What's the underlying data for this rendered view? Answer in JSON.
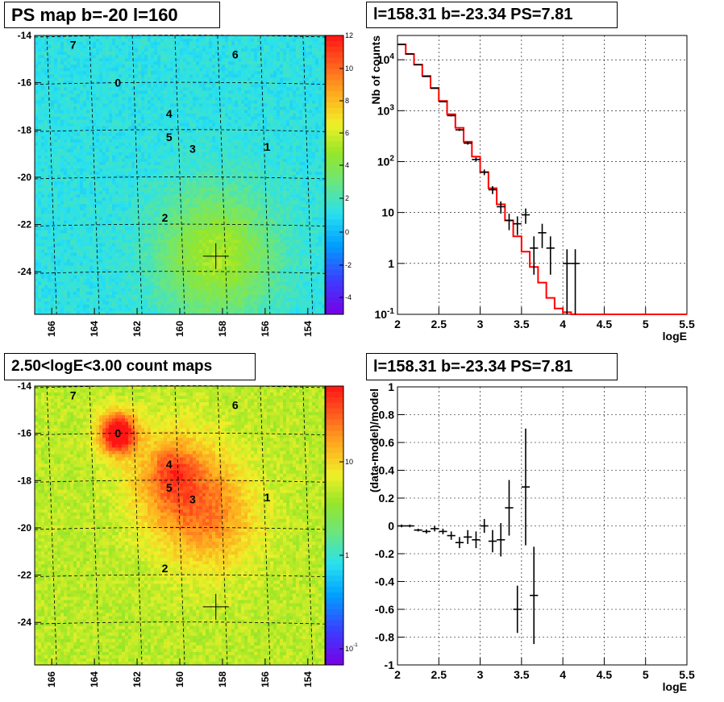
{
  "panels": {
    "tl_title": "PS map b=-20 l=160",
    "tr_title": "l=158.31 b=-23.34 PS=7.81",
    "bl_title": "2.50<logE<3.00 count maps",
    "br_title": "l=158.31 b=-23.34 PS=7.81"
  },
  "colors": {
    "fit_line": "#ff0000",
    "data_points": "#000000",
    "grid": "#000000"
  },
  "chart_data": [
    {
      "type": "heatmap",
      "title": "PS map b=-20 l=160",
      "xlabel": "",
      "ylabel": "",
      "xlim": [
        166.8,
        153.2
      ],
      "ylim": [
        -25.8,
        -14
      ],
      "x_ticks": [
        "166",
        "164",
        "162",
        "160",
        "158",
        "156",
        "154"
      ],
      "y_ticks": [
        "-14",
        "-16",
        "-18",
        "-20",
        "-22",
        "-24"
      ],
      "zlim": [
        -5,
        12
      ],
      "z_ticks": [
        "12",
        "10",
        "8",
        "6",
        "4",
        "2",
        "0",
        "-2",
        "-4"
      ],
      "background_level": 1,
      "hotspots": [
        {
          "l": 158.3,
          "b": -23.3,
          "sigma": 1.9,
          "amp": 4.2
        }
      ],
      "source_labels": [
        {
          "label": "7",
          "l": 165.0,
          "b": -14.4
        },
        {
          "label": "6",
          "l": 157.4,
          "b": -14.8
        },
        {
          "label": "0",
          "l": 162.9,
          "b": -16.0
        },
        {
          "label": "4",
          "l": 160.5,
          "b": -17.3
        },
        {
          "label": "5",
          "l": 160.5,
          "b": -18.3
        },
        {
          "label": "3",
          "l": 159.4,
          "b": -18.8
        },
        {
          "label": "1",
          "l": 155.9,
          "b": -18.7
        },
        {
          "label": "2",
          "l": 160.7,
          "b": -21.7
        }
      ],
      "marker": {
        "l": 158.31,
        "b": -23.34
      }
    },
    {
      "type": "line",
      "title": "l=158.31 b=-23.34 PS=7.81",
      "xlabel": "logE",
      "ylabel": "Nb of counts",
      "y_scale": "log",
      "xlim": [
        2,
        5.5
      ],
      "ylim": [
        0.1,
        30000
      ],
      "x_ticks": [
        "2",
        "2.5",
        "3",
        "3.5",
        "4",
        "4.5",
        "5",
        "5.5"
      ],
      "y_ticks": [
        "10^4",
        "10^3",
        "10^2",
        "10",
        "1",
        "10^-1"
      ],
      "fit_model": {
        "name": "model",
        "bin_edges": [
          2.0,
          2.1,
          2.2,
          2.3,
          2.4,
          2.5,
          2.6,
          2.7,
          2.8,
          2.9,
          3.0,
          3.1,
          3.2,
          3.3,
          3.4,
          3.5,
          3.6,
          3.7,
          3.8,
          3.9,
          4.0,
          4.1,
          4.2,
          5.5
        ],
        "values": [
          20000,
          13000,
          8000,
          4800,
          2800,
          1550,
          850,
          460,
          245,
          125,
          62,
          30,
          14.5,
          7,
          3.4,
          1.7,
          0.85,
          0.42,
          0.21,
          0.13,
          0.11,
          0.1,
          0.1
        ]
      },
      "data_points": {
        "name": "data",
        "x": [
          2.05,
          2.15,
          2.25,
          2.35,
          2.45,
          2.55,
          2.65,
          2.75,
          2.85,
          2.95,
          3.05,
          3.15,
          3.25,
          3.35,
          3.45,
          3.55,
          3.65,
          3.75,
          3.85,
          4.05,
          4.15
        ],
        "y": [
          20000,
          13000,
          8000,
          4700,
          2750,
          1500,
          800,
          420,
          230,
          110,
          62,
          28,
          13,
          7,
          6,
          9,
          2,
          4,
          2,
          1,
          1
        ],
        "yerr_lo": [
          140,
          115,
          90,
          70,
          52,
          39,
          28,
          21,
          15,
          10.5,
          8,
          5,
          3.5,
          2.5,
          2.4,
          3,
          1.4,
          2,
          1.4,
          0.9,
          0.9
        ],
        "yerr_hi": [
          140,
          115,
          90,
          70,
          52,
          39,
          28,
          21,
          15,
          10.5,
          8,
          5,
          3.5,
          2.5,
          2.4,
          3,
          1.4,
          2,
          1.4,
          0.9,
          0.9
        ]
      }
    },
    {
      "type": "heatmap",
      "title": "2.50<logE<3.00 count maps",
      "xlabel": "",
      "ylabel": "",
      "xlim": [
        166.8,
        153.2
      ],
      "ylim": [
        -25.8,
        -14
      ],
      "x_ticks": [
        "166",
        "164",
        "162",
        "160",
        "158",
        "156",
        "154"
      ],
      "y_ticks": [
        "-14",
        "-16",
        "-18",
        "-20",
        "-22",
        "-24"
      ],
      "z_scale": "log",
      "z_ticks": [
        "10",
        "1",
        "10^-1"
      ],
      "background_level": 0.35,
      "hotspots": [
        {
          "l": 162.9,
          "b": -16.0,
          "sigma": 0.6,
          "amp": 0.55
        },
        {
          "l": 160.2,
          "b": -18.0,
          "sigma": 1.5,
          "amp": 0.22
        },
        {
          "l": 158.6,
          "b": -19.6,
          "sigma": 1.6,
          "amp": 0.2
        },
        {
          "l": 160.4,
          "b": -17.5,
          "sigma": 0.7,
          "amp": 0.12
        }
      ],
      "source_labels": [
        {
          "label": "7",
          "l": 165.0,
          "b": -14.4
        },
        {
          "label": "6",
          "l": 157.4,
          "b": -14.8
        },
        {
          "label": "0",
          "l": 162.9,
          "b": -16.0
        },
        {
          "label": "4",
          "l": 160.5,
          "b": -17.3
        },
        {
          "label": "5",
          "l": 160.5,
          "b": -18.3
        },
        {
          "label": "3",
          "l": 159.4,
          "b": -18.8
        },
        {
          "label": "1",
          "l": 155.9,
          "b": -18.7
        },
        {
          "label": "2",
          "l": 160.7,
          "b": -21.7
        }
      ],
      "marker": {
        "l": 158.31,
        "b": -23.34
      }
    },
    {
      "type": "scatter",
      "title": "l=158.31 b=-23.34 PS=7.81",
      "xlabel": "logE",
      "ylabel": "(data-model)/model",
      "xlim": [
        2,
        5.5
      ],
      "ylim": [
        -1,
        1
      ],
      "x_ticks": [
        "2",
        "2.5",
        "3",
        "3.5",
        "4",
        "4.5",
        "5",
        "5.5"
      ],
      "y_ticks": [
        "1",
        "0.8",
        "0.6",
        "0.4",
        "0.2",
        "0",
        "-0.2",
        "-0.4",
        "-0.6",
        "-0.8",
        "-1"
      ],
      "data_points": {
        "name": "residuals",
        "x": [
          2.05,
          2.15,
          2.25,
          2.35,
          2.45,
          2.55,
          2.65,
          2.75,
          2.85,
          2.95,
          3.05,
          3.15,
          3.25,
          3.35,
          3.45,
          3.55,
          3.65
        ],
        "y": [
          0.0,
          0.0,
          -0.03,
          -0.04,
          -0.02,
          -0.04,
          -0.07,
          -0.12,
          -0.08,
          -0.1,
          0.0,
          -0.11,
          -0.1,
          0.13,
          -0.6,
          0.28,
          -0.5
        ],
        "yerr": [
          0.01,
          0.01,
          0.01,
          0.015,
          0.02,
          0.02,
          0.03,
          0.04,
          0.05,
          0.06,
          0.05,
          0.08,
          0.12,
          0.2,
          0.17,
          0.42,
          0.35
        ]
      }
    }
  ]
}
